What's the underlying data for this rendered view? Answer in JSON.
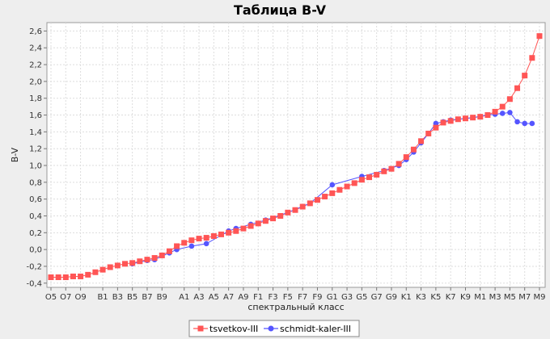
{
  "chart_data": {
    "type": "line",
    "title": "Таблица B-V",
    "xlabel": "спектральный класс",
    "ylabel": "B-V",
    "ylim": [
      -0.45,
      2.7
    ],
    "yticks": [
      -0.4,
      -0.2,
      0.0,
      0.2,
      0.4,
      0.6,
      0.8,
      1.0,
      1.2,
      1.4,
      1.6,
      1.8,
      2.0,
      2.2,
      2.4,
      2.6
    ],
    "ytick_labels": [
      "-0,4",
      "-0,2",
      "0,0",
      "0,2",
      "0,4",
      "0,6",
      "0,8",
      "1,0",
      "1,2",
      "1,4",
      "1,6",
      "1,8",
      "2,0",
      "2,2",
      "2,4",
      "2,6"
    ],
    "categories": [
      "O5",
      "O6",
      "O7",
      "O8",
      "O9",
      "O9.5",
      "B0",
      "B1",
      "B2",
      "B3",
      "B4",
      "B5",
      "B6",
      "B7",
      "B8",
      "B9",
      "B9.5",
      "A0",
      "A1",
      "A2",
      "A3",
      "A4",
      "A5",
      "A6",
      "A7",
      "A8",
      "A9",
      "F0",
      "F1",
      "F2",
      "F3",
      "F4",
      "F5",
      "F6",
      "F7",
      "F8",
      "F9",
      "G0",
      "G1",
      "G2",
      "G3",
      "G4",
      "G5",
      "G6",
      "G7",
      "G8",
      "G9",
      "K0",
      "K1",
      "K2",
      "K3",
      "K4",
      "K5",
      "K6",
      "K7",
      "K8",
      "K9",
      "M0",
      "M1",
      "M2",
      "M3",
      "M4",
      "M5",
      "M6",
      "M7",
      "M8",
      "M9"
    ],
    "xtick_labels": [
      "O5",
      "O7",
      "O9",
      "B1",
      "B3",
      "B5",
      "B7",
      "B9",
      "A1",
      "A3",
      "A5",
      "A7",
      "A9",
      "F1",
      "F3",
      "F5",
      "F7",
      "F9",
      "G1",
      "G3",
      "G5",
      "G7",
      "G9",
      "K1",
      "K3",
      "K5",
      "K7",
      "K9",
      "M1",
      "M3",
      "M5",
      "M7",
      "M9"
    ],
    "legend_position": "bottom",
    "grid": true,
    "series": [
      {
        "name": "tsvetkov-III",
        "color": "#ff5555",
        "marker": "square",
        "values": [
          -0.33,
          -0.33,
          -0.33,
          -0.32,
          -0.32,
          -0.3,
          -0.27,
          -0.24,
          -0.21,
          -0.19,
          -0.17,
          -0.16,
          -0.14,
          -0.12,
          -0.1,
          -0.07,
          -0.02,
          0.04,
          0.08,
          0.11,
          0.13,
          0.14,
          0.16,
          0.18,
          0.2,
          0.22,
          0.25,
          0.28,
          0.31,
          0.34,
          0.37,
          0.4,
          0.44,
          0.47,
          0.51,
          0.55,
          0.59,
          0.63,
          0.67,
          0.71,
          0.75,
          0.79,
          0.83,
          0.86,
          0.89,
          0.93,
          0.96,
          1.02,
          1.1,
          1.19,
          1.29,
          1.38,
          1.45,
          1.51,
          1.53,
          1.55,
          1.56,
          1.57,
          1.58,
          1.6,
          1.64,
          1.7,
          1.79,
          1.92,
          2.07,
          2.28,
          2.54
        ]
      },
      {
        "name": "schmidt-kaler-III",
        "color": "#5555ff",
        "marker": "circle",
        "points": [
          [
            "B5",
            -0.17
          ],
          [
            "B7",
            -0.13
          ],
          [
            "B8",
            -0.12
          ],
          [
            "B9.5",
            -0.04
          ],
          [
            "A0",
            0.0
          ],
          [
            "A2",
            0.04
          ],
          [
            "A4",
            0.07
          ],
          [
            "A7",
            0.22
          ],
          [
            "A8",
            0.25
          ],
          [
            "F0",
            0.3
          ],
          [
            "F2",
            0.35
          ],
          [
            "F5",
            0.44
          ],
          [
            "F8",
            0.55
          ],
          [
            "G1",
            0.77
          ],
          [
            "G5",
            0.87
          ],
          [
            "G8",
            0.94
          ],
          [
            "K0",
            1.0
          ],
          [
            "K1",
            1.07
          ],
          [
            "K2",
            1.16
          ],
          [
            "K3",
            1.27
          ],
          [
            "K4",
            1.38
          ],
          [
            "K5",
            1.5
          ],
          [
            "K6",
            1.52
          ],
          [
            "K7",
            1.54
          ],
          [
            "K9",
            1.56
          ],
          [
            "M0",
            1.57
          ],
          [
            "M2",
            1.6
          ],
          [
            "M3",
            1.61
          ],
          [
            "M4",
            1.62
          ],
          [
            "M5",
            1.63
          ],
          [
            "M6",
            1.52
          ],
          [
            "M7",
            1.5
          ],
          [
            "M8",
            1.5
          ]
        ]
      }
    ]
  }
}
